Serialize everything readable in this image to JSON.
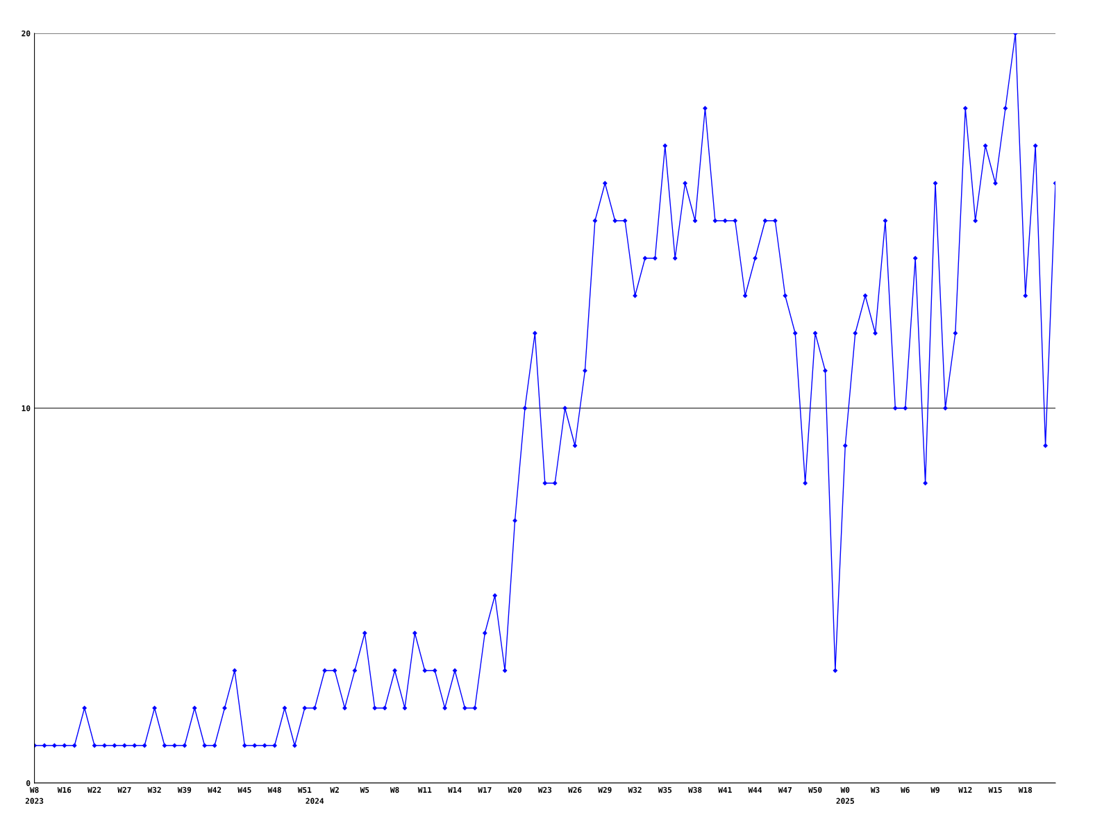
{
  "chart_data": {
    "type": "line",
    "categories": [
      "W8\n2023",
      null,
      null,
      "W16",
      null,
      null,
      "W22",
      null,
      null,
      "W27",
      null,
      null,
      "W32",
      null,
      null,
      "W39",
      null,
      null,
      "W42",
      null,
      null,
      "W45",
      null,
      null,
      "W48",
      null,
      null,
      "W51",
      "\n2024",
      null,
      "W2",
      null,
      null,
      "W5",
      null,
      null,
      "W8",
      null,
      null,
      "W11",
      null,
      null,
      "W14",
      null,
      null,
      "W17",
      null,
      null,
      "W20",
      null,
      null,
      "W23",
      null,
      null,
      "W26",
      null,
      null,
      "W29",
      null,
      null,
      "W32",
      null,
      null,
      "W35",
      null,
      null,
      "W38",
      null,
      null,
      "W41",
      null,
      null,
      "W44",
      null,
      null,
      "W47",
      null,
      null,
      "W50",
      null,
      null,
      "W0\n2025",
      null,
      null,
      "W3",
      null,
      null,
      "W6",
      null,
      null,
      "W9",
      null,
      null,
      "W12",
      null,
      null,
      "W15",
      null,
      null,
      "W18",
      null,
      null,
      null
    ],
    "series": [
      {
        "color": "#0000ff",
        "values": [
          1,
          1,
          1,
          1,
          1,
          2,
          1,
          1,
          1,
          1,
          1,
          1,
          2,
          1,
          1,
          1,
          2,
          1,
          1,
          2,
          3,
          1,
          1,
          1,
          1,
          2,
          1,
          2,
          2,
          3,
          3,
          2,
          3,
          4,
          2,
          2,
          3,
          2,
          4,
          3,
          3,
          2,
          3,
          2,
          2,
          4,
          5,
          3,
          7,
          10,
          12,
          8,
          8,
          10,
          9,
          11,
          15,
          16,
          15,
          15,
          13,
          14,
          14,
          17,
          14,
          16,
          15,
          18,
          15,
          15,
          15,
          13,
          14,
          15,
          15,
          13,
          12,
          8,
          12,
          11,
          3,
          9,
          12,
          13,
          12,
          15,
          10,
          10,
          14,
          8,
          16,
          10,
          12,
          18,
          15,
          17,
          16,
          18,
          20,
          13,
          17,
          9,
          16
        ]
      }
    ],
    "ylim": [
      0,
      20
    ],
    "yticks": [
      0,
      10,
      20
    ],
    "grid": "y",
    "marker": "diamond",
    "line_style": "solid"
  }
}
